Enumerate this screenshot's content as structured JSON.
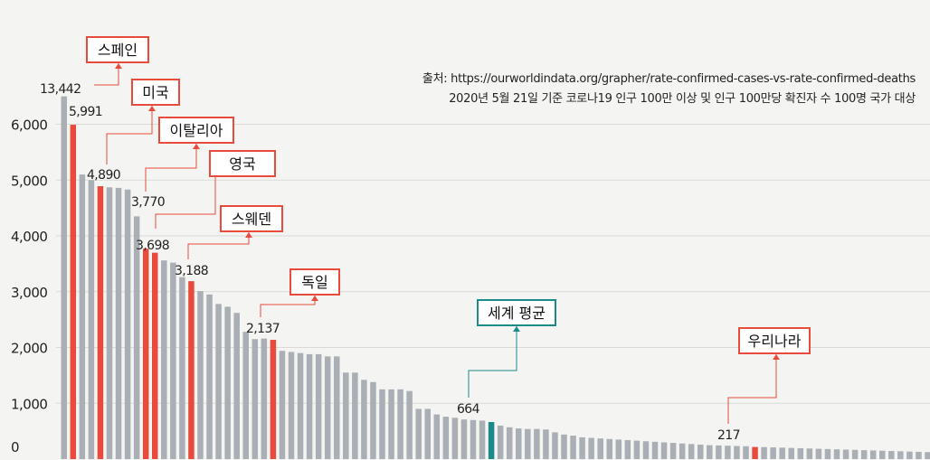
{
  "chart_data": {
    "type": "bar",
    "source_text": "출처: https://ourworldindata.org/grapher/rate-confirmed-cases-vs-rate-confirmed-deaths",
    "note_text": "2020년 5월 21일 기준 코로나19 인구 100만 이상 및 인구 100만당 확진자 수 100명 국가 대상",
    "ylim": [
      0,
      6200
    ],
    "y_ticks": [
      0,
      1000,
      2000,
      3000,
      4000,
      5000,
      6000
    ],
    "y_tick_labels": [
      "0",
      "1,000",
      "2,000",
      "3,000",
      "4,000",
      "5,000",
      "6,000"
    ],
    "colors": {
      "gray": "#a9afb4",
      "red": "#e84b3c",
      "teal": "#1a8a8a",
      "text": "#222222"
    },
    "values": [
      6500,
      5991,
      5100,
      5000,
      4890,
      4870,
      4860,
      4830,
      4350,
      3770,
      3698,
      3560,
      3520,
      3260,
      3188,
      3010,
      2950,
      2780,
      2730,
      2620,
      2280,
      2150,
      2160,
      2137,
      1940,
      1920,
      1900,
      1880,
      1880,
      1840,
      1840,
      1550,
      1550,
      1420,
      1380,
      1250,
      1250,
      1250,
      1220,
      900,
      900,
      800,
      760,
      740,
      710,
      700,
      690,
      664,
      600,
      570,
      550,
      540,
      540,
      530,
      480,
      440,
      420,
      390,
      380,
      370,
      360,
      350,
      340,
      330,
      320,
      310,
      300,
      290,
      280,
      270,
      260,
      250,
      245,
      240,
      235,
      230,
      217,
      215,
      210,
      205,
      200,
      195,
      190,
      185,
      180,
      175,
      170,
      165,
      160,
      155,
      150,
      145,
      140,
      135,
      130,
      125
    ],
    "highlights": [
      {
        "index": 1,
        "label": "스페인",
        "value_label": "5,991",
        "extra_value_label": "13,442",
        "color": "red"
      },
      {
        "index": 4,
        "label": "미국",
        "value_label": "4,890",
        "color": "red"
      },
      {
        "index": 9,
        "label": "이탈리아",
        "value_label": "3,770",
        "color": "red"
      },
      {
        "index": 10,
        "label": "영국",
        "value_label": "3,698",
        "color": "red"
      },
      {
        "index": 14,
        "label": "스웨덴",
        "value_label": "3,188",
        "color": "red"
      },
      {
        "index": 23,
        "label": "독일",
        "value_label": "2,137",
        "color": "red"
      },
      {
        "index": 47,
        "label": "세계 평균",
        "value_label": "664",
        "color": "teal"
      },
      {
        "index": 76,
        "label": "우리나라",
        "value_label": "217",
        "color": "red"
      }
    ]
  }
}
